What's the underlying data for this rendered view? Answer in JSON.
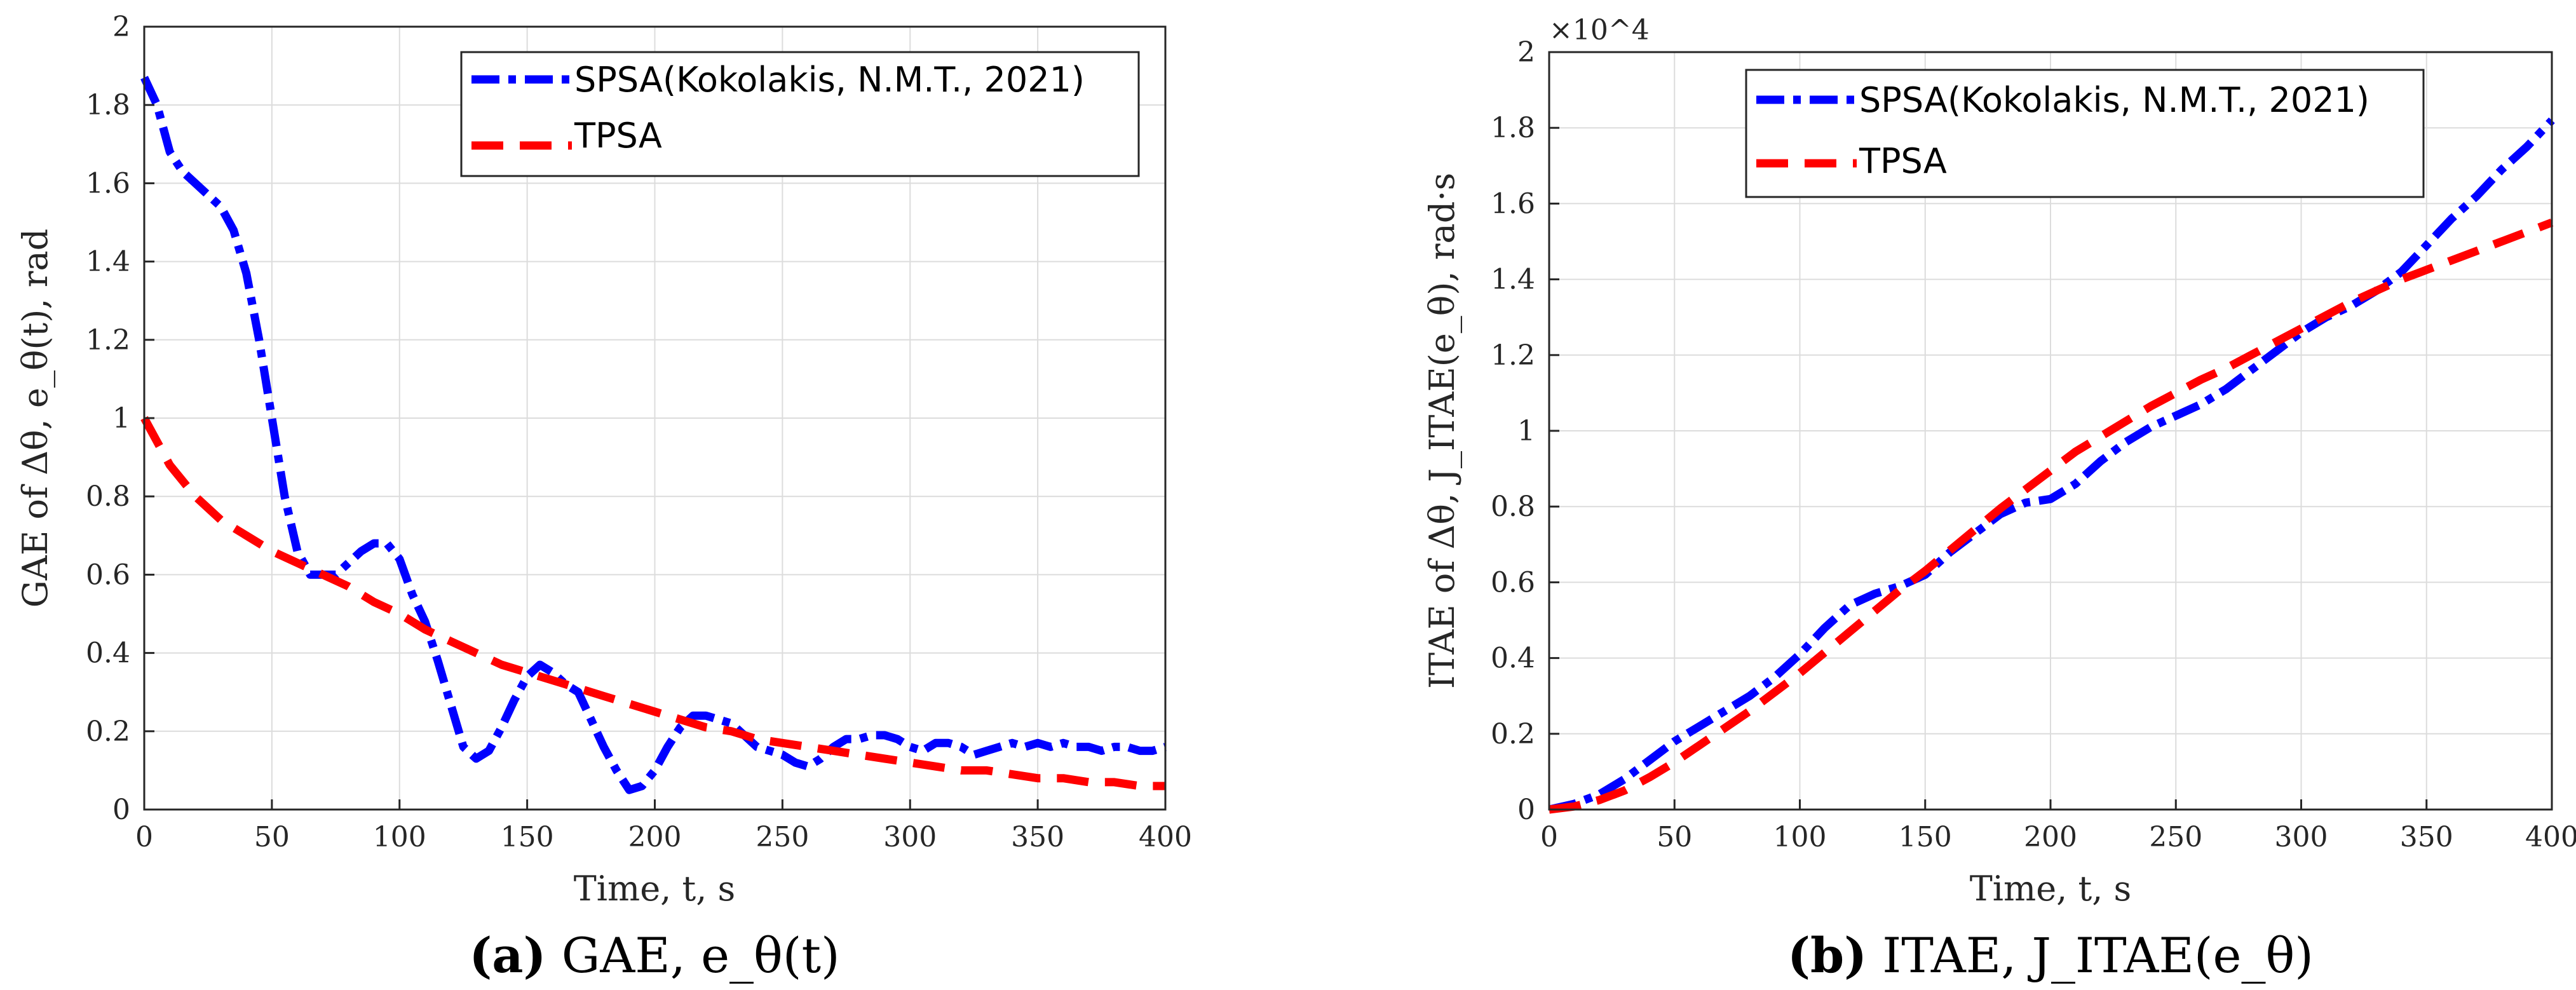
{
  "chart_data": [
    {
      "type": "line",
      "xlabel": "Time,  t, s",
      "ylabel": "GAE of Δθ, e_θ(t), rad",
      "caption": {
        "letter": "(a)",
        "text": "GAE, e_θ(t)"
      },
      "xlim": [
        0,
        400
      ],
      "ylim": [
        0,
        2
      ],
      "xticks": [
        0,
        50,
        100,
        150,
        200,
        250,
        300,
        350,
        400
      ],
      "yticks": [
        0,
        0.2,
        0.4,
        0.6,
        0.8,
        1,
        1.2,
        1.4,
        1.6,
        1.8,
        2
      ],
      "ytick_labels": [
        "0",
        "0.2",
        "0.4",
        "0.6",
        "0.8",
        "1",
        "1.2",
        "1.4",
        "1.6",
        "1.8",
        "2"
      ],
      "grid": true,
      "legend_position": "top-right",
      "series": [
        {
          "name": "SPSA(Kokolakis, N.M.T., 2021)",
          "color": "#0000ff",
          "dash": "dash-dot",
          "x": [
            0,
            5,
            10,
            15,
            20,
            25,
            30,
            35,
            40,
            45,
            50,
            55,
            60,
            65,
            70,
            75,
            80,
            85,
            90,
            95,
            100,
            105,
            110,
            115,
            120,
            125,
            130,
            135,
            140,
            145,
            150,
            155,
            160,
            165,
            170,
            175,
            180,
            185,
            190,
            195,
            200,
            205,
            210,
            215,
            220,
            225,
            230,
            235,
            240,
            245,
            250,
            255,
            260,
            265,
            270,
            275,
            280,
            285,
            290,
            295,
            300,
            305,
            310,
            315,
            320,
            325,
            330,
            335,
            340,
            345,
            350,
            355,
            360,
            365,
            370,
            375,
            380,
            385,
            390,
            395,
            400
          ],
          "y": [
            1.87,
            1.8,
            1.68,
            1.63,
            1.6,
            1.57,
            1.54,
            1.48,
            1.37,
            1.2,
            1.0,
            0.8,
            0.66,
            0.6,
            0.6,
            0.6,
            0.63,
            0.66,
            0.68,
            0.68,
            0.64,
            0.55,
            0.48,
            0.38,
            0.27,
            0.16,
            0.13,
            0.15,
            0.21,
            0.28,
            0.34,
            0.37,
            0.35,
            0.32,
            0.3,
            0.23,
            0.16,
            0.1,
            0.05,
            0.06,
            0.1,
            0.16,
            0.21,
            0.24,
            0.24,
            0.23,
            0.22,
            0.19,
            0.16,
            0.15,
            0.14,
            0.12,
            0.11,
            0.13,
            0.16,
            0.18,
            0.18,
            0.19,
            0.19,
            0.18,
            0.16,
            0.15,
            0.17,
            0.17,
            0.16,
            0.14,
            0.15,
            0.16,
            0.17,
            0.16,
            0.17,
            0.16,
            0.17,
            0.16,
            0.16,
            0.15,
            0.16,
            0.16,
            0.15,
            0.15,
            0.16
          ]
        },
        {
          "name": "TPSA",
          "color": "#ff0000",
          "dash": "dashed",
          "x": [
            0,
            10,
            20,
            30,
            40,
            50,
            60,
            70,
            80,
            90,
            100,
            110,
            120,
            130,
            140,
            150,
            160,
            170,
            180,
            190,
            200,
            210,
            220,
            230,
            240,
            250,
            260,
            270,
            280,
            290,
            300,
            310,
            320,
            330,
            340,
            350,
            360,
            370,
            380,
            390,
            400
          ],
          "y": [
            1.0,
            0.88,
            0.8,
            0.74,
            0.7,
            0.66,
            0.63,
            0.6,
            0.57,
            0.53,
            0.5,
            0.46,
            0.43,
            0.4,
            0.37,
            0.35,
            0.33,
            0.31,
            0.29,
            0.27,
            0.25,
            0.23,
            0.21,
            0.2,
            0.18,
            0.17,
            0.16,
            0.15,
            0.14,
            0.13,
            0.12,
            0.11,
            0.1,
            0.1,
            0.09,
            0.08,
            0.08,
            0.07,
            0.07,
            0.06,
            0.06
          ]
        }
      ]
    },
    {
      "type": "line",
      "xlabel": "Time,  t, s",
      "ylabel": "ITAE of Δθ, J_ITAE(e_θ), rad·s",
      "caption": {
        "letter": "(b)",
        "text": "ITAE, J_ITAE(e_θ)"
      },
      "xlim": [
        0,
        400
      ],
      "ylim": [
        0,
        20000
      ],
      "y_exponent": "×10^4",
      "xticks": [
        0,
        50,
        100,
        150,
        200,
        250,
        300,
        350,
        400
      ],
      "yticks": [
        0,
        2000,
        4000,
        6000,
        8000,
        10000,
        12000,
        14000,
        16000,
        18000,
        20000
      ],
      "ytick_labels": [
        "0",
        "0.2",
        "0.4",
        "0.6",
        "0.8",
        "1",
        "1.2",
        "1.4",
        "1.6",
        "1.8",
        "2"
      ],
      "grid": true,
      "legend_position": "top-left",
      "series": [
        {
          "name": "SPSA(Kokolakis, N.M.T., 2021)",
          "color": "#0000ff",
          "dash": "dash-dot",
          "x": [
            0,
            10,
            20,
            30,
            40,
            50,
            60,
            70,
            80,
            90,
            100,
            110,
            120,
            130,
            140,
            150,
            160,
            170,
            180,
            190,
            200,
            210,
            220,
            230,
            240,
            250,
            260,
            270,
            280,
            290,
            300,
            310,
            320,
            330,
            340,
            350,
            360,
            370,
            380,
            390,
            400
          ],
          "y": [
            0,
            150,
            400,
            800,
            1300,
            1800,
            2200,
            2600,
            3000,
            3500,
            4100,
            4800,
            5400,
            5700,
            5900,
            6200,
            6800,
            7300,
            7800,
            8100,
            8200,
            8600,
            9200,
            9700,
            10100,
            10400,
            10700,
            11100,
            11600,
            12100,
            12600,
            13000,
            13300,
            13700,
            14200,
            14900,
            15600,
            16200,
            16900,
            17500,
            18200
          ]
        },
        {
          "name": "TPSA",
          "color": "#ff0000",
          "dash": "dashed",
          "x": [
            0,
            10,
            20,
            30,
            40,
            50,
            60,
            70,
            80,
            90,
            100,
            110,
            120,
            130,
            140,
            150,
            160,
            170,
            180,
            190,
            200,
            210,
            220,
            230,
            240,
            250,
            260,
            270,
            280,
            290,
            300,
            310,
            320,
            330,
            340,
            350,
            360,
            370,
            380,
            390,
            400
          ],
          "y": [
            0,
            80,
            250,
            500,
            850,
            1250,
            1700,
            2150,
            2600,
            3100,
            3600,
            4150,
            4700,
            5250,
            5800,
            6300,
            6850,
            7400,
            7950,
            8450,
            8950,
            9450,
            9850,
            10250,
            10650,
            11000,
            11350,
            11650,
            12000,
            12350,
            12700,
            13050,
            13400,
            13700,
            14000,
            14250,
            14500,
            14750,
            15000,
            15250,
            15500
          ]
        }
      ]
    }
  ]
}
